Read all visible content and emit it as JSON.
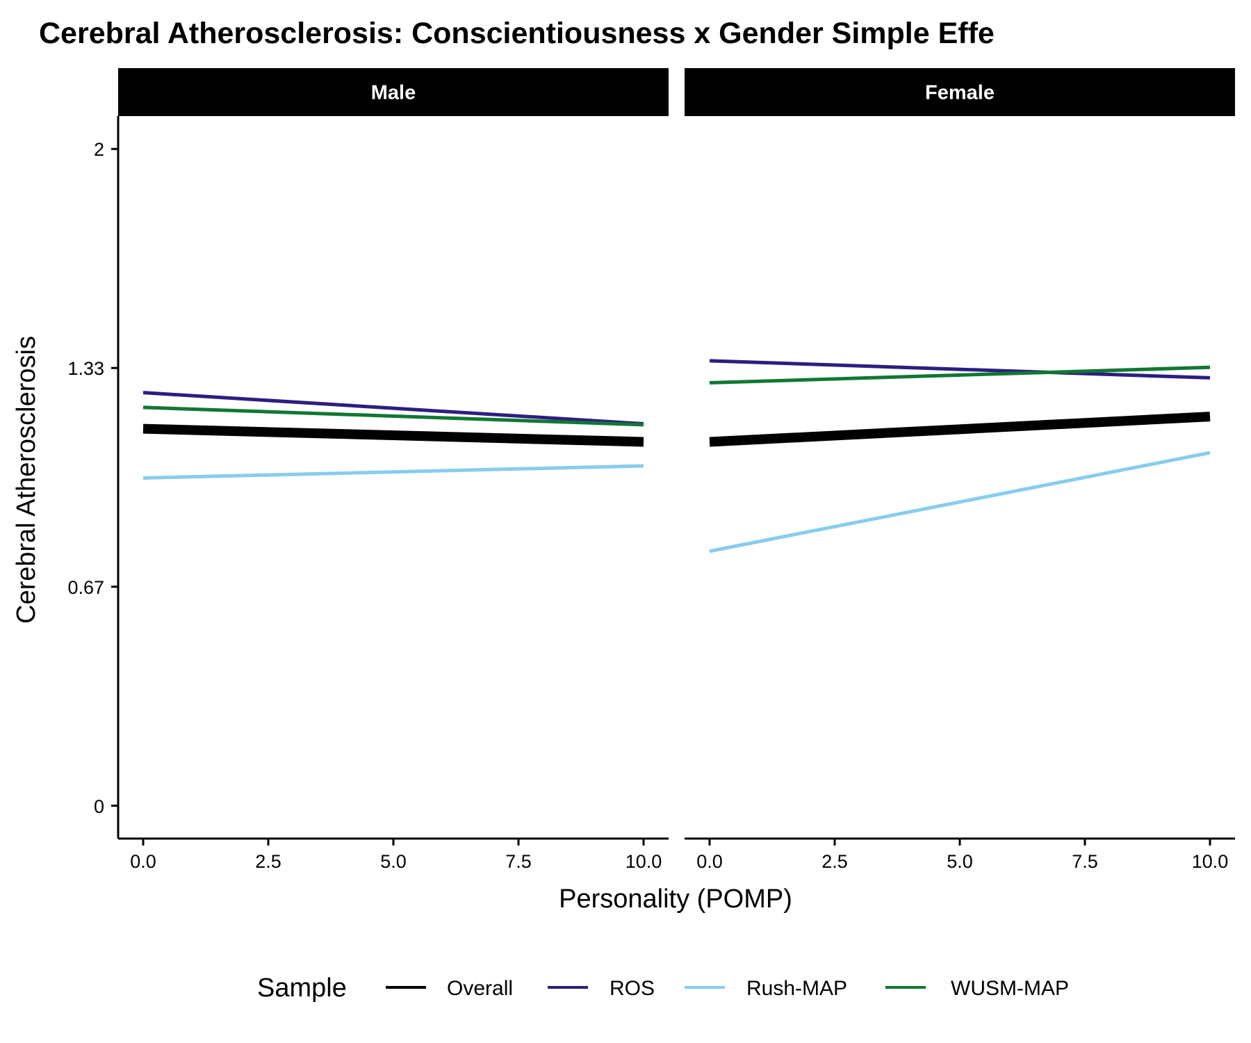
{
  "chart_data": {
    "type": "line",
    "title": "Cerebral Atherosclerosis: Conscientiousness x Gender Simple Effe",
    "xlabel": "Personality (POMP)",
    "ylabel": "Cerebral Atherosclerosis",
    "xlim": [
      -0.5,
      10.5
    ],
    "ylim": [
      -0.1,
      2.1
    ],
    "x_ticks": [
      0,
      2.5,
      5,
      7.5,
      10
    ],
    "x_tick_labels": [
      "0.0",
      "2.5",
      "5.0",
      "7.5",
      "10.0"
    ],
    "y_ticks": [
      0,
      0.667,
      1.333,
      2
    ],
    "y_tick_labels": [
      "0",
      "0.67",
      "1.33",
      "2"
    ],
    "grid": false,
    "legend": {
      "title": "Sample",
      "position": "bottom",
      "entries": [
        "Overall",
        "ROS",
        "Rush-MAP",
        "WUSM-MAP"
      ]
    },
    "series_styles": {
      "Overall": {
        "color": "#000000",
        "bold": true
      },
      "ROS": {
        "color": "#2b1f80",
        "bold": false
      },
      "Rush-MAP": {
        "color": "#88ccee",
        "bold": false
      },
      "WUSM-MAP": {
        "color": "#117733",
        "bold": false
      }
    },
    "panels": [
      {
        "label": "Male",
        "series": [
          {
            "name": "Overall",
            "x": [
              0,
              10
            ],
            "y": [
              1.148,
              1.108
            ]
          },
          {
            "name": "ROS",
            "x": [
              0,
              10
            ],
            "y": [
              1.258,
              1.163
            ]
          },
          {
            "name": "Rush-MAP",
            "x": [
              0,
              10
            ],
            "y": [
              0.998,
              1.035
            ]
          },
          {
            "name": "WUSM-MAP",
            "x": [
              0,
              10
            ],
            "y": [
              1.213,
              1.16
            ]
          }
        ]
      },
      {
        "label": "Female",
        "series": [
          {
            "name": "Overall",
            "x": [
              0,
              10
            ],
            "y": [
              1.108,
              1.185
            ]
          },
          {
            "name": "ROS",
            "x": [
              0,
              10
            ],
            "y": [
              1.355,
              1.303
            ]
          },
          {
            "name": "Rush-MAP",
            "x": [
              0,
              10
            ],
            "y": [
              0.775,
              1.075
            ]
          },
          {
            "name": "WUSM-MAP",
            "x": [
              0,
              10
            ],
            "y": [
              1.288,
              1.335
            ]
          }
        ]
      }
    ]
  }
}
